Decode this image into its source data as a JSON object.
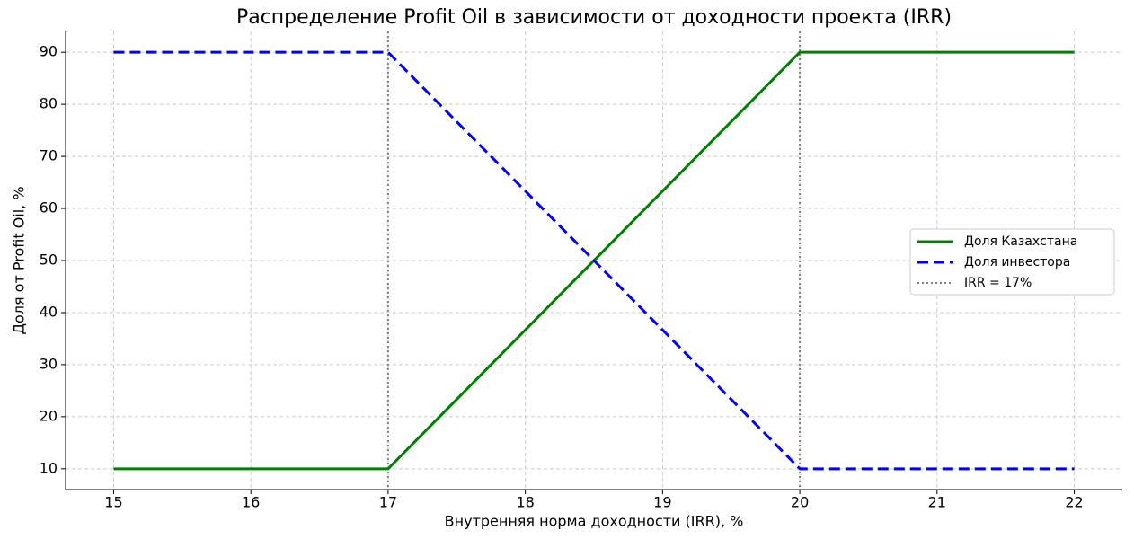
{
  "chart_data": {
    "type": "line",
    "title": "Распределение Profit Oil в зависимости от доходности проекта (IRR)",
    "x_label": "Внутренняя норма доходности (IRR), %",
    "y_label": "Доля от Profit Oil, %",
    "x": [
      15,
      17,
      20,
      22
    ],
    "series": [
      {
        "name": "Доля Казахстана",
        "color": "#008000",
        "linestyle": "solid",
        "values": [
          10,
          10,
          90,
          90
        ]
      },
      {
        "name": "Доля инвестора",
        "color": "#0000ff",
        "linestyle": "dashed",
        "values": [
          90,
          90,
          10,
          10
        ]
      }
    ],
    "vlines": [
      17,
      20
    ],
    "vline_label": "IRR = 17%",
    "vline_color": "#808080",
    "xlim": [
      14.65,
      22.35
    ],
    "ylim": [
      6,
      94
    ],
    "xticks": [
      15,
      16,
      17,
      18,
      19,
      20,
      21,
      22
    ],
    "yticks": [
      10,
      20,
      30,
      40,
      50,
      60,
      70,
      80,
      90
    ],
    "grid": true,
    "legend": "center right"
  }
}
